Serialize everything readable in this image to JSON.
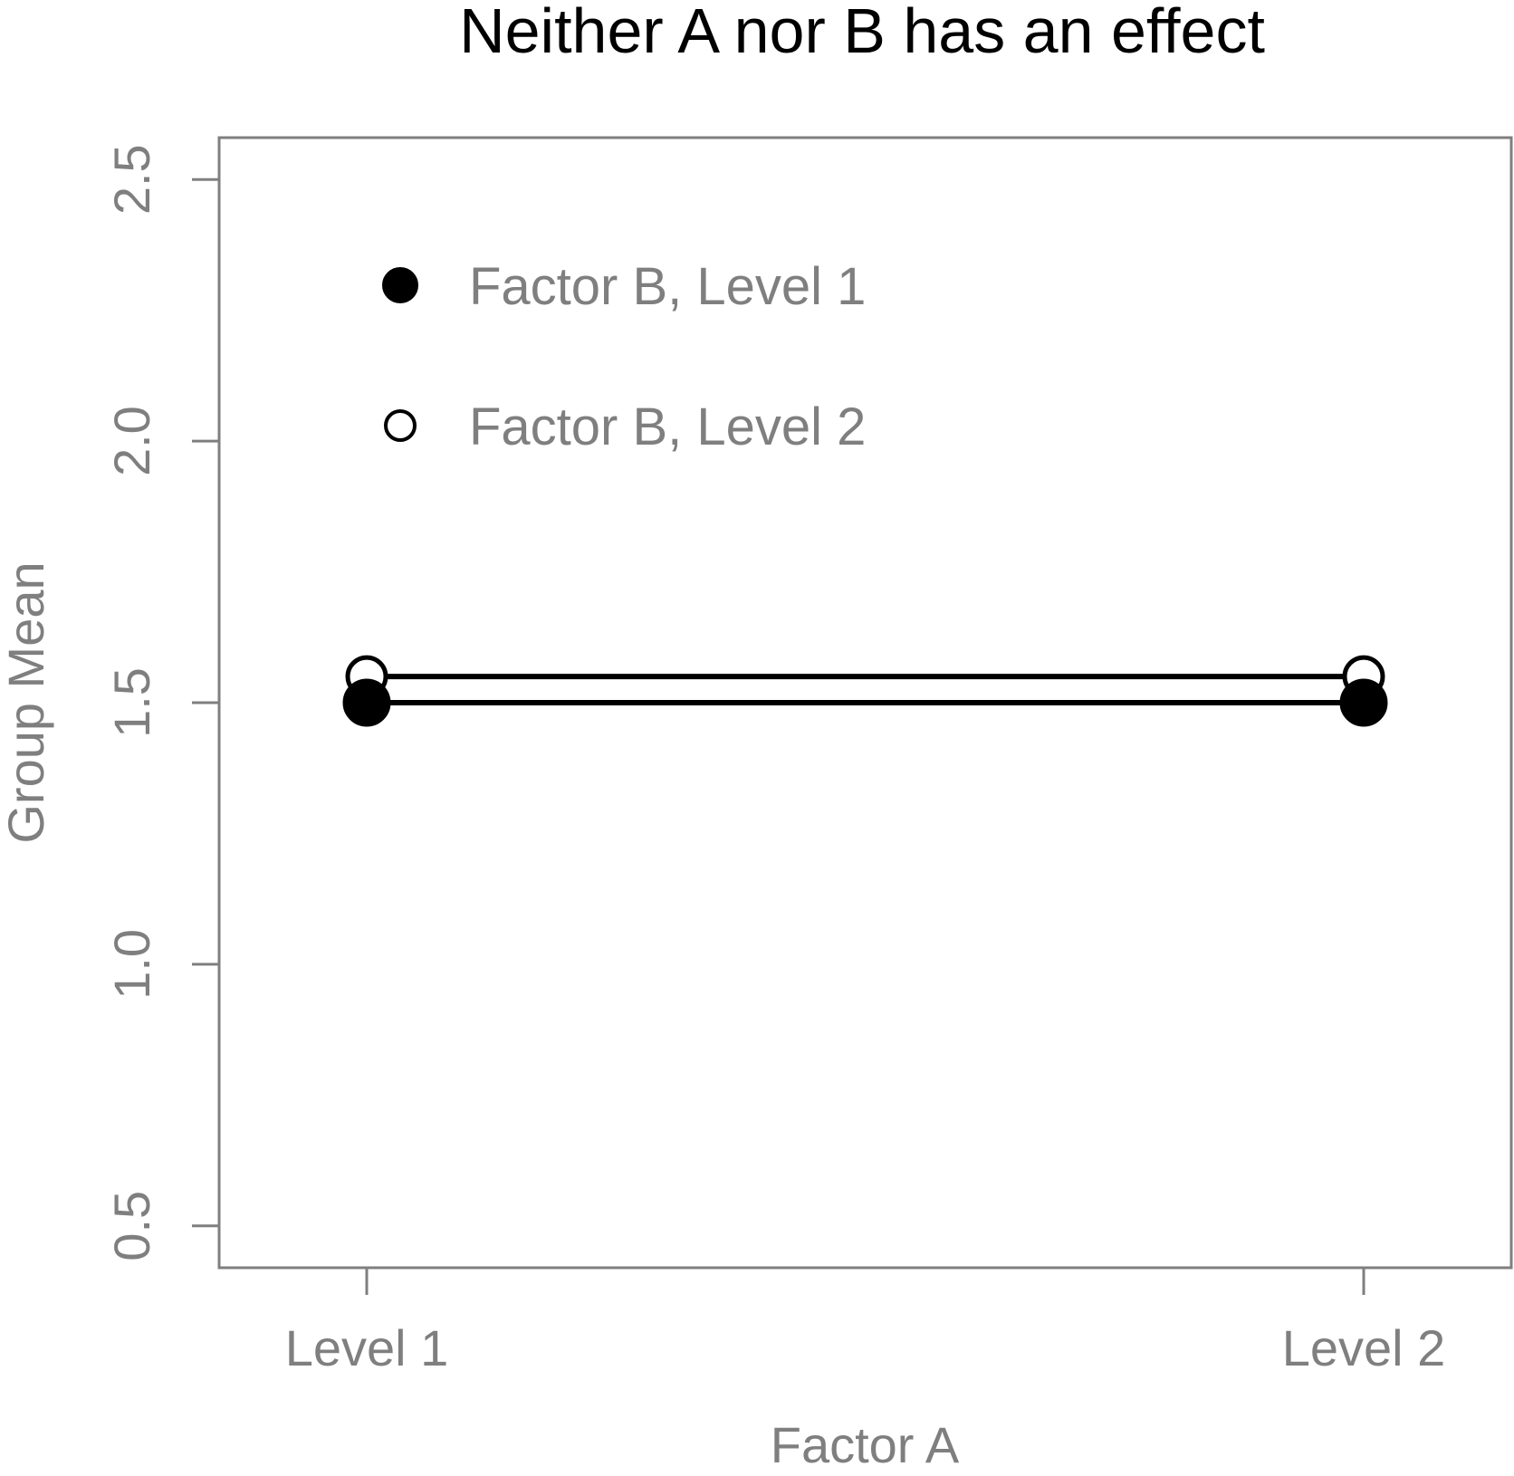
{
  "chart_data": {
    "type": "line",
    "title": "Neither A nor B has an effect",
    "xlabel": "Factor A",
    "ylabel": "Group Mean",
    "categories": [
      "Level 1",
      "Level 2"
    ],
    "ylim": [
      0.42,
      2.58
    ],
    "yticks": [
      "0.5",
      "1.0",
      "1.5",
      "2.0",
      "2.5"
    ],
    "grid": false,
    "legend_position": "top-left",
    "series": [
      {
        "name": "Factor B, Level 1",
        "values": [
          1.5,
          1.5
        ],
        "marker": "filled-circle"
      },
      {
        "name": "Factor B, Level 2",
        "values": [
          1.55,
          1.55
        ],
        "marker": "open-circle"
      }
    ]
  },
  "colors": {
    "axis": "#7f7f7f",
    "line": "#000000",
    "title": "#000000"
  }
}
